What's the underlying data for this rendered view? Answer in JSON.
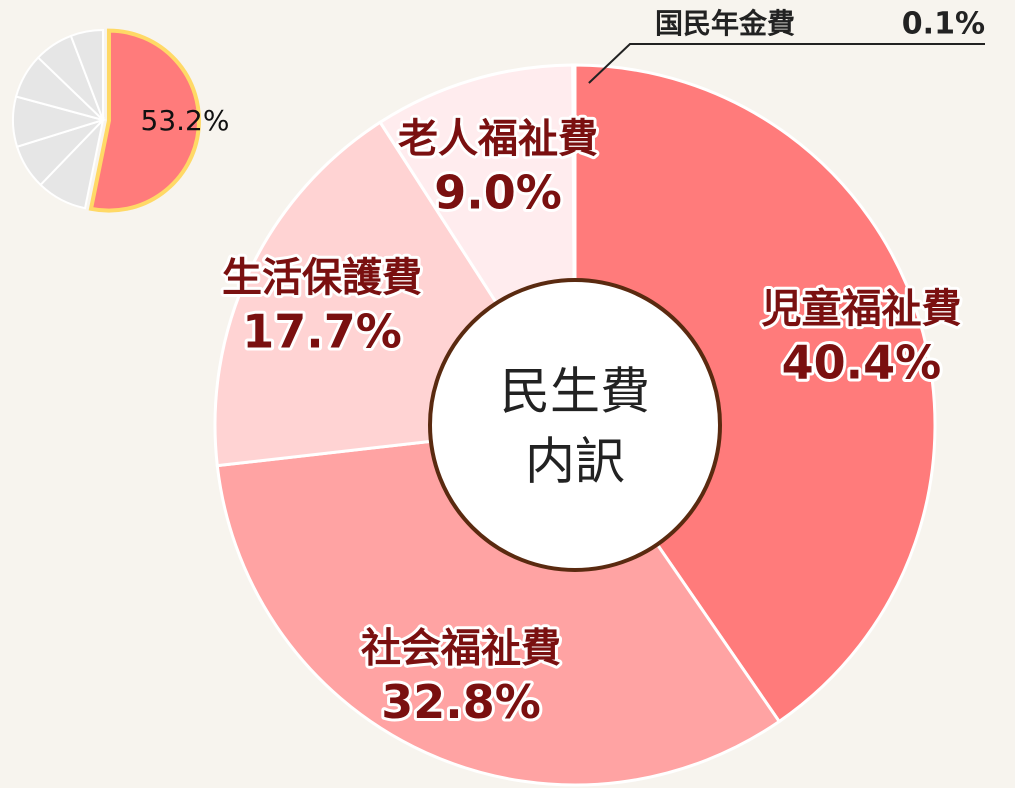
{
  "chart_data": [
    {
      "type": "donut",
      "center_label": [
        "民生費",
        "内訳"
      ],
      "categories": [
        "児童福祉費",
        "社会福祉費",
        "生活保護費",
        "老人福祉費",
        "国民年金費"
      ],
      "values": [
        40.4,
        32.8,
        17.7,
        9.0,
        0.1
      ],
      "value_labels": [
        "40.4%",
        "32.8%",
        "17.7%",
        "9.0%",
        "0.1%"
      ],
      "colors": [
        "#ff7b7b",
        "#ffa3a3",
        "#ffd3d3",
        "#ffecee",
        "#ffecee"
      ]
    },
    {
      "type": "pie",
      "values": [
        53.2,
        9,
        8,
        9,
        8,
        7,
        5.8
      ],
      "value_labels": [
        "53.2%",
        null,
        null,
        null,
        null,
        null,
        null
      ],
      "colors": [
        "#ff7b7b",
        "#e6e6e6",
        "#e6e6e6",
        "#e6e6e6",
        "#e6e6e6",
        "#e6e6e6",
        "#e6e6e6"
      ]
    }
  ]
}
